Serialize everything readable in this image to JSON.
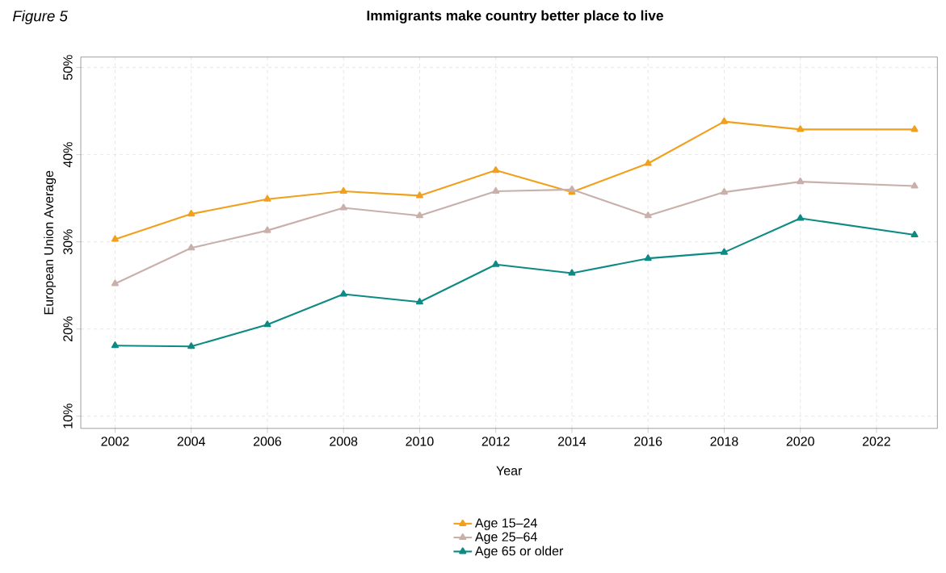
{
  "chart_data": {
    "type": "line",
    "title": "Immigrants make country better place to live",
    "xlabel": "Year",
    "ylabel": "European Union Average",
    "annotations": [
      "Figure 5"
    ],
    "x": [
      2002,
      2004,
      2006,
      2008,
      2010,
      2012,
      2014,
      2016,
      2018,
      2020,
      2023
    ],
    "series": [
      {
        "name": "Age 15–24",
        "color": "#f0a01c",
        "values": [
          30.3,
          33.2,
          34.9,
          35.8,
          35.3,
          38.2,
          35.7,
          39.0,
          43.8,
          42.9,
          42.9
        ]
      },
      {
        "name": "Age 25–64",
        "color": "#c9b0aa",
        "values": [
          25.2,
          29.3,
          31.3,
          33.9,
          33.0,
          35.8,
          36.0,
          33.0,
          35.7,
          36.9,
          36.4
        ]
      },
      {
        "name": "Age 65 or older",
        "color": "#0e8a85",
        "values": [
          18.1,
          18.0,
          20.5,
          24.0,
          23.1,
          27.4,
          26.4,
          28.1,
          28.8,
          32.7,
          30.8
        ]
      }
    ],
    "xlim": [
      2001.1,
      2023.6
    ],
    "ylim": [
      8.6,
      51.2
    ],
    "xticks": [
      2002,
      2004,
      2006,
      2008,
      2010,
      2012,
      2014,
      2016,
      2018,
      2020,
      2022
    ],
    "yticks": [
      {
        "value": 10,
        "label": "10%"
      },
      {
        "value": 20,
        "label": "20%"
      },
      {
        "value": 30,
        "label": "30%"
      },
      {
        "value": 40,
        "label": "40%"
      },
      {
        "value": 50,
        "label": "50%"
      }
    ],
    "grid": true,
    "legend": "bottom",
    "marker": "triangle",
    "line_style": "solid"
  }
}
